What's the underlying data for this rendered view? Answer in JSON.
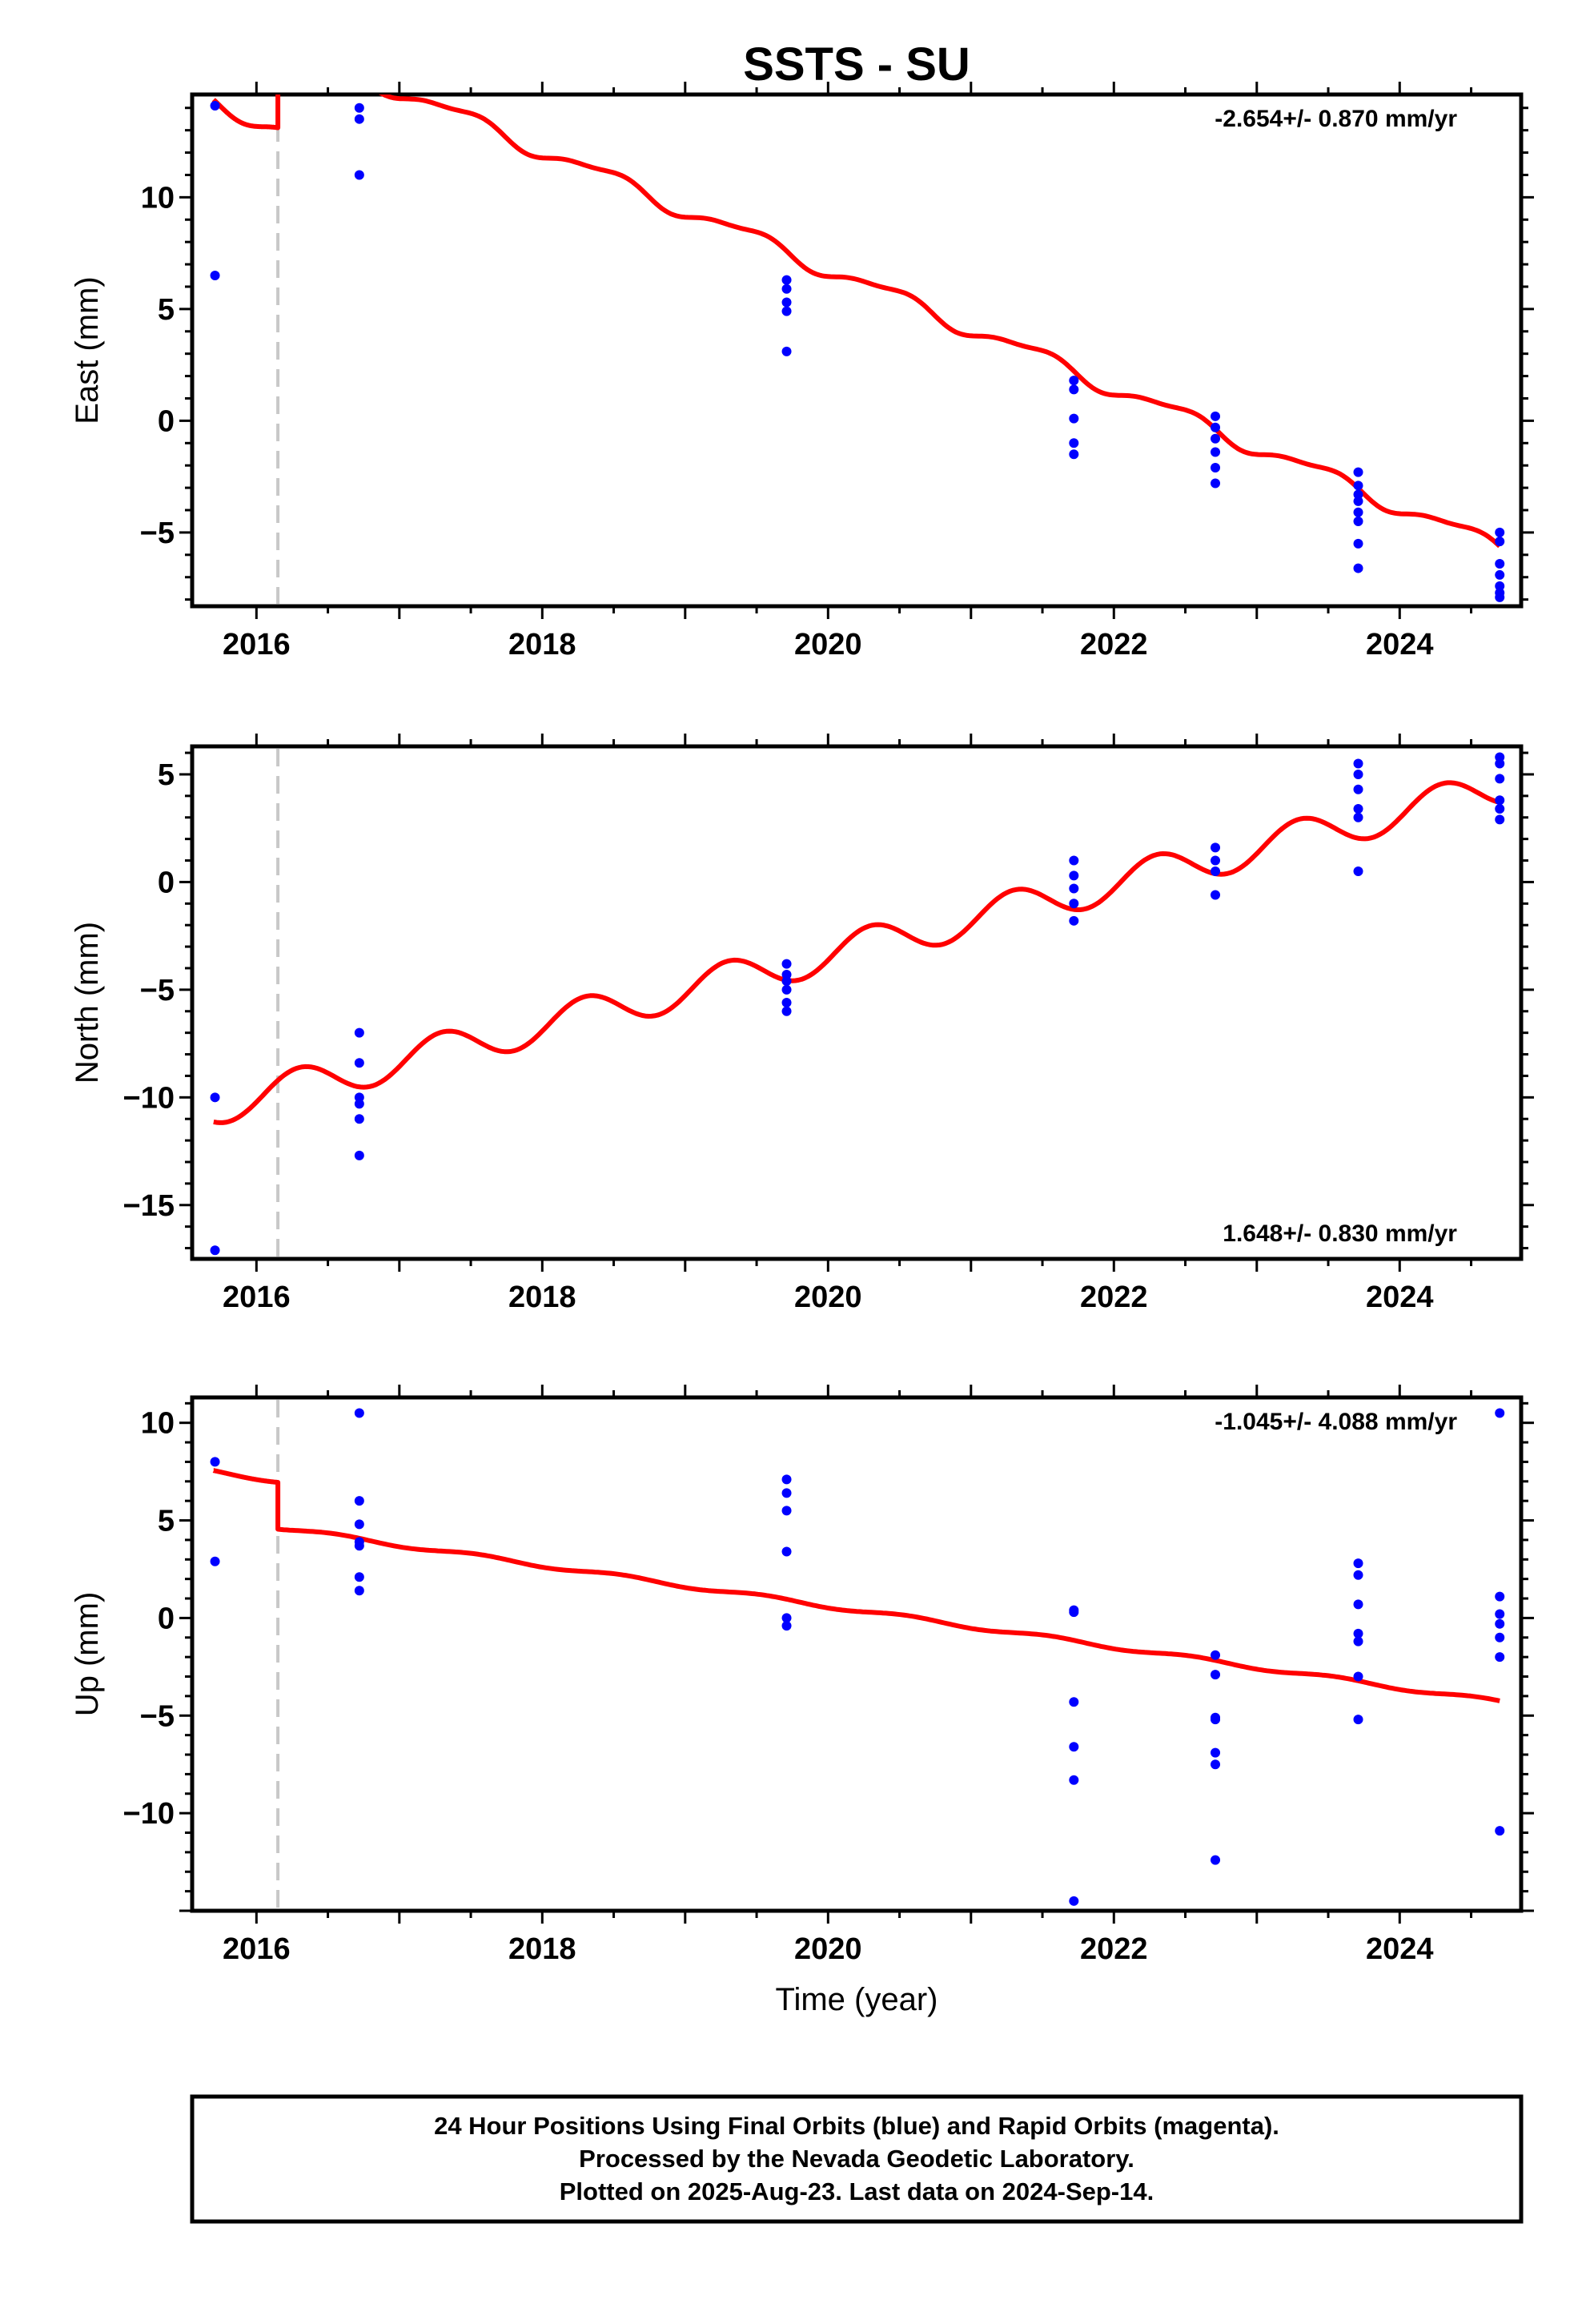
{
  "title": "SSTS - SU",
  "xlabel": "Time (year)",
  "footer": {
    "line1": "24 Hour Positions Using Final Orbits (blue) and Rapid Orbits (magenta).",
    "line2": "Processed by the Nevada Geodetic Laboratory.",
    "line3": "Plotted on 2025-Aug-23. Last data on 2024-Sep-14."
  },
  "colors": {
    "data": "#0000ff",
    "model": "#ff0000",
    "offset_line": "#c8c8c8",
    "frame": "#000000"
  },
  "chart_data": [
    {
      "type": "scatter",
      "name": "east",
      "ylabel": "East (mm)",
      "rate_text": "-2.654+/- 0.870 mm/yr",
      "rate_position": "top-right",
      "xlim": [
        2015.55,
        2024.85
      ],
      "ylim": [
        -8.3,
        14.6
      ],
      "xticks": [
        2016,
        2018,
        2020,
        2022,
        2024
      ],
      "yticks": [
        -5,
        0,
        5,
        10
      ],
      "offset_epoch": 2016.15,
      "points": [
        [
          2015.71,
          14.1
        ],
        [
          2015.71,
          6.5
        ],
        [
          2016.72,
          14.0
        ],
        [
          2016.72,
          13.5
        ],
        [
          2016.72,
          11.0
        ],
        [
          2019.71,
          6.3
        ],
        [
          2019.71,
          5.9
        ],
        [
          2019.71,
          5.3
        ],
        [
          2019.71,
          4.9
        ],
        [
          2019.71,
          3.1
        ],
        [
          2021.72,
          1.8
        ],
        [
          2021.72,
          1.4
        ],
        [
          2021.72,
          0.1
        ],
        [
          2021.72,
          -1.0
        ],
        [
          2021.72,
          -1.5
        ],
        [
          2022.71,
          0.2
        ],
        [
          2022.71,
          -0.3
        ],
        [
          2022.71,
          -0.8
        ],
        [
          2022.71,
          -1.4
        ],
        [
          2022.71,
          -2.1
        ],
        [
          2022.71,
          -2.8
        ],
        [
          2023.71,
          -2.3
        ],
        [
          2023.71,
          -2.9
        ],
        [
          2023.71,
          -3.3
        ],
        [
          2023.71,
          -3.6
        ],
        [
          2023.71,
          -4.1
        ],
        [
          2023.71,
          -4.5
        ],
        [
          2023.71,
          -5.5
        ],
        [
          2023.71,
          -6.6
        ],
        [
          2024.7,
          -5.0
        ],
        [
          2024.7,
          -5.4
        ],
        [
          2024.7,
          -6.4
        ],
        [
          2024.7,
          -6.9
        ],
        [
          2024.7,
          -7.4
        ],
        [
          2024.7,
          -7.7
        ],
        [
          2024.7,
          -7.9
        ]
      ],
      "model": {
        "segments": [
          [
            2015.7,
            2016.15
          ],
          [
            2016.15,
            2024.7
          ]
        ],
        "offsets": [
          14.3,
          18.2
        ],
        "rate": -2.654,
        "t0": 2015.7,
        "annual_amp": 0.35,
        "annual_phase": 0.2,
        "semiannual_amp": 0.12
      }
    },
    {
      "type": "scatter",
      "name": "north",
      "ylabel": "North (mm)",
      "rate_text": "1.648+/- 0.830 mm/yr",
      "rate_position": "bottom-right",
      "xlim": [
        2015.55,
        2024.85
      ],
      "ylim": [
        -17.5,
        6.3
      ],
      "xticks": [
        2016,
        2018,
        2020,
        2022,
        2024
      ],
      "yticks": [
        -15,
        -10,
        -5,
        0,
        5
      ],
      "offset_epoch": 2016.15,
      "points": [
        [
          2015.71,
          -10.0
        ],
        [
          2015.71,
          -17.1
        ],
        [
          2016.72,
          -7.0
        ],
        [
          2016.72,
          -8.4
        ],
        [
          2016.72,
          -10.0
        ],
        [
          2016.72,
          -10.3
        ],
        [
          2016.72,
          -11.0
        ],
        [
          2016.72,
          -12.7
        ],
        [
          2019.71,
          -3.8
        ],
        [
          2019.71,
          -4.3
        ],
        [
          2019.71,
          -4.6
        ],
        [
          2019.71,
          -5.0
        ],
        [
          2019.71,
          -5.6
        ],
        [
          2019.71,
          -6.0
        ],
        [
          2021.72,
          1.0
        ],
        [
          2021.72,
          0.3
        ],
        [
          2021.72,
          -0.3
        ],
        [
          2021.72,
          -1.0
        ],
        [
          2021.72,
          -1.8
        ],
        [
          2022.71,
          1.6
        ],
        [
          2022.71,
          1.0
        ],
        [
          2022.71,
          0.5
        ],
        [
          2022.71,
          -0.6
        ],
        [
          2023.71,
          5.5
        ],
        [
          2023.71,
          5.0
        ],
        [
          2023.71,
          4.3
        ],
        [
          2023.71,
          3.4
        ],
        [
          2023.71,
          3.0
        ],
        [
          2023.71,
          0.5
        ],
        [
          2024.7,
          5.8
        ],
        [
          2024.7,
          5.5
        ],
        [
          2024.7,
          4.8
        ],
        [
          2024.7,
          3.8
        ],
        [
          2024.7,
          3.4
        ],
        [
          2024.7,
          2.9
        ]
      ],
      "model": {
        "segments": [
          [
            2015.7,
            2024.7
          ]
        ],
        "offsets": [
          -10.45
        ],
        "rate": 1.648,
        "t0": 2015.7,
        "annual_amp": 0.85,
        "annual_phase": 0.05,
        "semiannual_amp": 0.0
      }
    },
    {
      "type": "scatter",
      "name": "up",
      "ylabel": "Up (mm)",
      "rate_text": "-1.045+/- 4.088 mm/yr",
      "rate_position": "top-right",
      "xlim": [
        2015.55,
        2024.85
      ],
      "ylim": [
        -15.0,
        11.3
      ],
      "xticks": [
        2016,
        2018,
        2020,
        2022,
        2024
      ],
      "yticks": [
        -10,
        -5,
        0,
        5,
        10
      ],
      "offset_epoch": 2016.15,
      "points": [
        [
          2015.71,
          8.0
        ],
        [
          2015.71,
          2.9
        ],
        [
          2016.72,
          10.5
        ],
        [
          2016.72,
          6.0
        ],
        [
          2016.72,
          4.8
        ],
        [
          2016.72,
          3.9
        ],
        [
          2016.72,
          3.7
        ],
        [
          2016.72,
          2.1
        ],
        [
          2016.72,
          1.4
        ],
        [
          2019.71,
          7.1
        ],
        [
          2019.71,
          6.4
        ],
        [
          2019.71,
          5.5
        ],
        [
          2019.71,
          3.4
        ],
        [
          2019.71,
          0.0
        ],
        [
          2019.71,
          -0.4
        ],
        [
          2021.72,
          0.4
        ],
        [
          2021.72,
          0.3
        ],
        [
          2021.72,
          -4.3
        ],
        [
          2021.72,
          -6.6
        ],
        [
          2021.72,
          -8.3
        ],
        [
          2021.72,
          -14.5
        ],
        [
          2022.71,
          -1.9
        ],
        [
          2022.71,
          -2.9
        ],
        [
          2022.71,
          -5.1
        ],
        [
          2022.71,
          -5.2
        ],
        [
          2022.71,
          -6.9
        ],
        [
          2022.71,
          -7.5
        ],
        [
          2022.71,
          -12.4
        ],
        [
          2023.71,
          2.8
        ],
        [
          2023.71,
          2.2
        ],
        [
          2023.71,
          0.7
        ],
        [
          2023.71,
          -0.8
        ],
        [
          2023.71,
          -1.2
        ],
        [
          2023.71,
          -3.0
        ],
        [
          2023.71,
          -5.2
        ],
        [
          2024.7,
          10.5
        ],
        [
          2024.7,
          1.1
        ],
        [
          2024.7,
          0.2
        ],
        [
          2024.7,
          -0.3
        ],
        [
          2024.7,
          -1.0
        ],
        [
          2024.7,
          -2.0
        ],
        [
          2024.7,
          -10.9
        ]
      ],
      "model": {
        "segments": [
          [
            2015.7,
            2016.15
          ],
          [
            2016.15,
            2024.7
          ]
        ],
        "offsets": [
          7.5,
          5.1
        ],
        "rate": -1.045,
        "t0": 2015.7,
        "annual_amp": 0.1,
        "annual_phase": 0.3,
        "semiannual_amp": 0.0
      }
    }
  ]
}
